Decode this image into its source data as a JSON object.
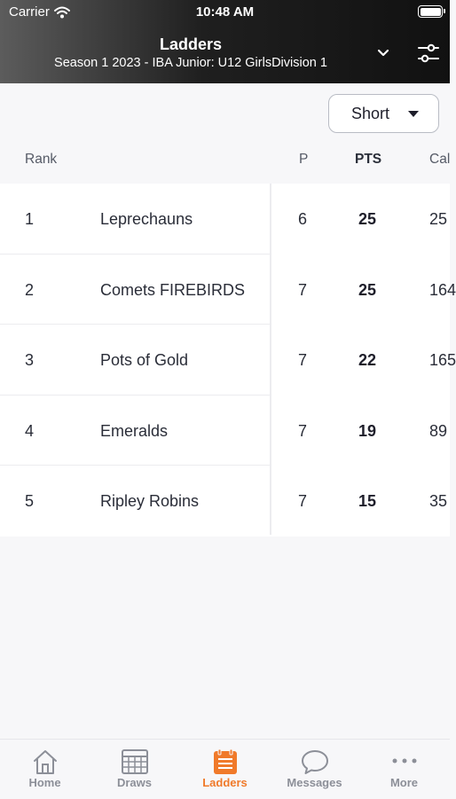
{
  "status_bar": {
    "carrier": "Carrier",
    "time": "10:48 AM"
  },
  "header": {
    "title": "Ladders",
    "subtitle": "Season 1 2023 - IBA Junior: U12 GirlsDivision 1"
  },
  "view_select": {
    "selected": "Short"
  },
  "table": {
    "columns": {
      "rank": "Rank",
      "p": "P",
      "pts": "PTS",
      "cal": "Cal"
    },
    "rows": [
      {
        "rank": "1",
        "team": "Leprechauns",
        "p": "6",
        "pts": "25",
        "cal": "25"
      },
      {
        "rank": "2",
        "team": "Comets FIREBIRDS",
        "p": "7",
        "pts": "25",
        "cal": "164"
      },
      {
        "rank": "3",
        "team": "Pots of Gold",
        "p": "7",
        "pts": "22",
        "cal": "165"
      },
      {
        "rank": "4",
        "team": "Emeralds",
        "p": "7",
        "pts": "19",
        "cal": "89"
      },
      {
        "rank": "5",
        "team": "Ripley Robins",
        "p": "7",
        "pts": "15",
        "cal": "35"
      }
    ]
  },
  "tabbar": {
    "home": "Home",
    "draws": "Draws",
    "ladders": "Ladders",
    "messages": "Messages",
    "more": "More",
    "active": "ladders",
    "active_color": "#f07a2a",
    "inactive_color": "#8c8f98"
  }
}
